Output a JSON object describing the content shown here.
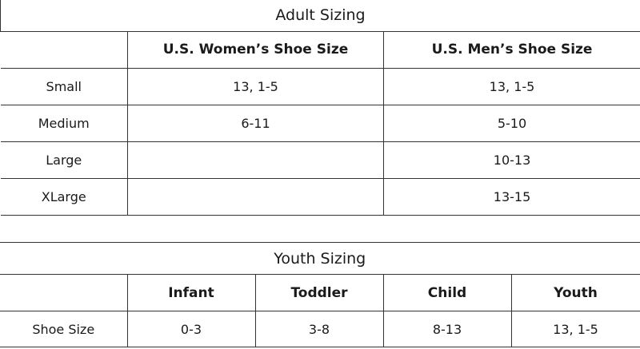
{
  "adult": {
    "title": "Adult Sizing",
    "headers": [
      "",
      "U.S. Women’s Shoe Size",
      "U.S. Men’s Shoe Size"
    ],
    "rows": [
      {
        "size": "Small",
        "women": "13, 1-5",
        "men": "13, 1-5"
      },
      {
        "size": "Medium",
        "women": "6-11",
        "men": "5-10"
      },
      {
        "size": "Large",
        "women": "",
        "men": "10-13"
      },
      {
        "size": "XLarge",
        "women": "",
        "men": "13-15"
      }
    ]
  },
  "youth": {
    "title": "Youth Sizing",
    "headers": [
      "",
      "Infant",
      "Toddler",
      "Child",
      "Youth"
    ],
    "row": {
      "label": "Shoe Size",
      "infant": "0-3",
      "toddler": "3-8",
      "child": "8-13",
      "youth": "13, 1-5"
    }
  }
}
